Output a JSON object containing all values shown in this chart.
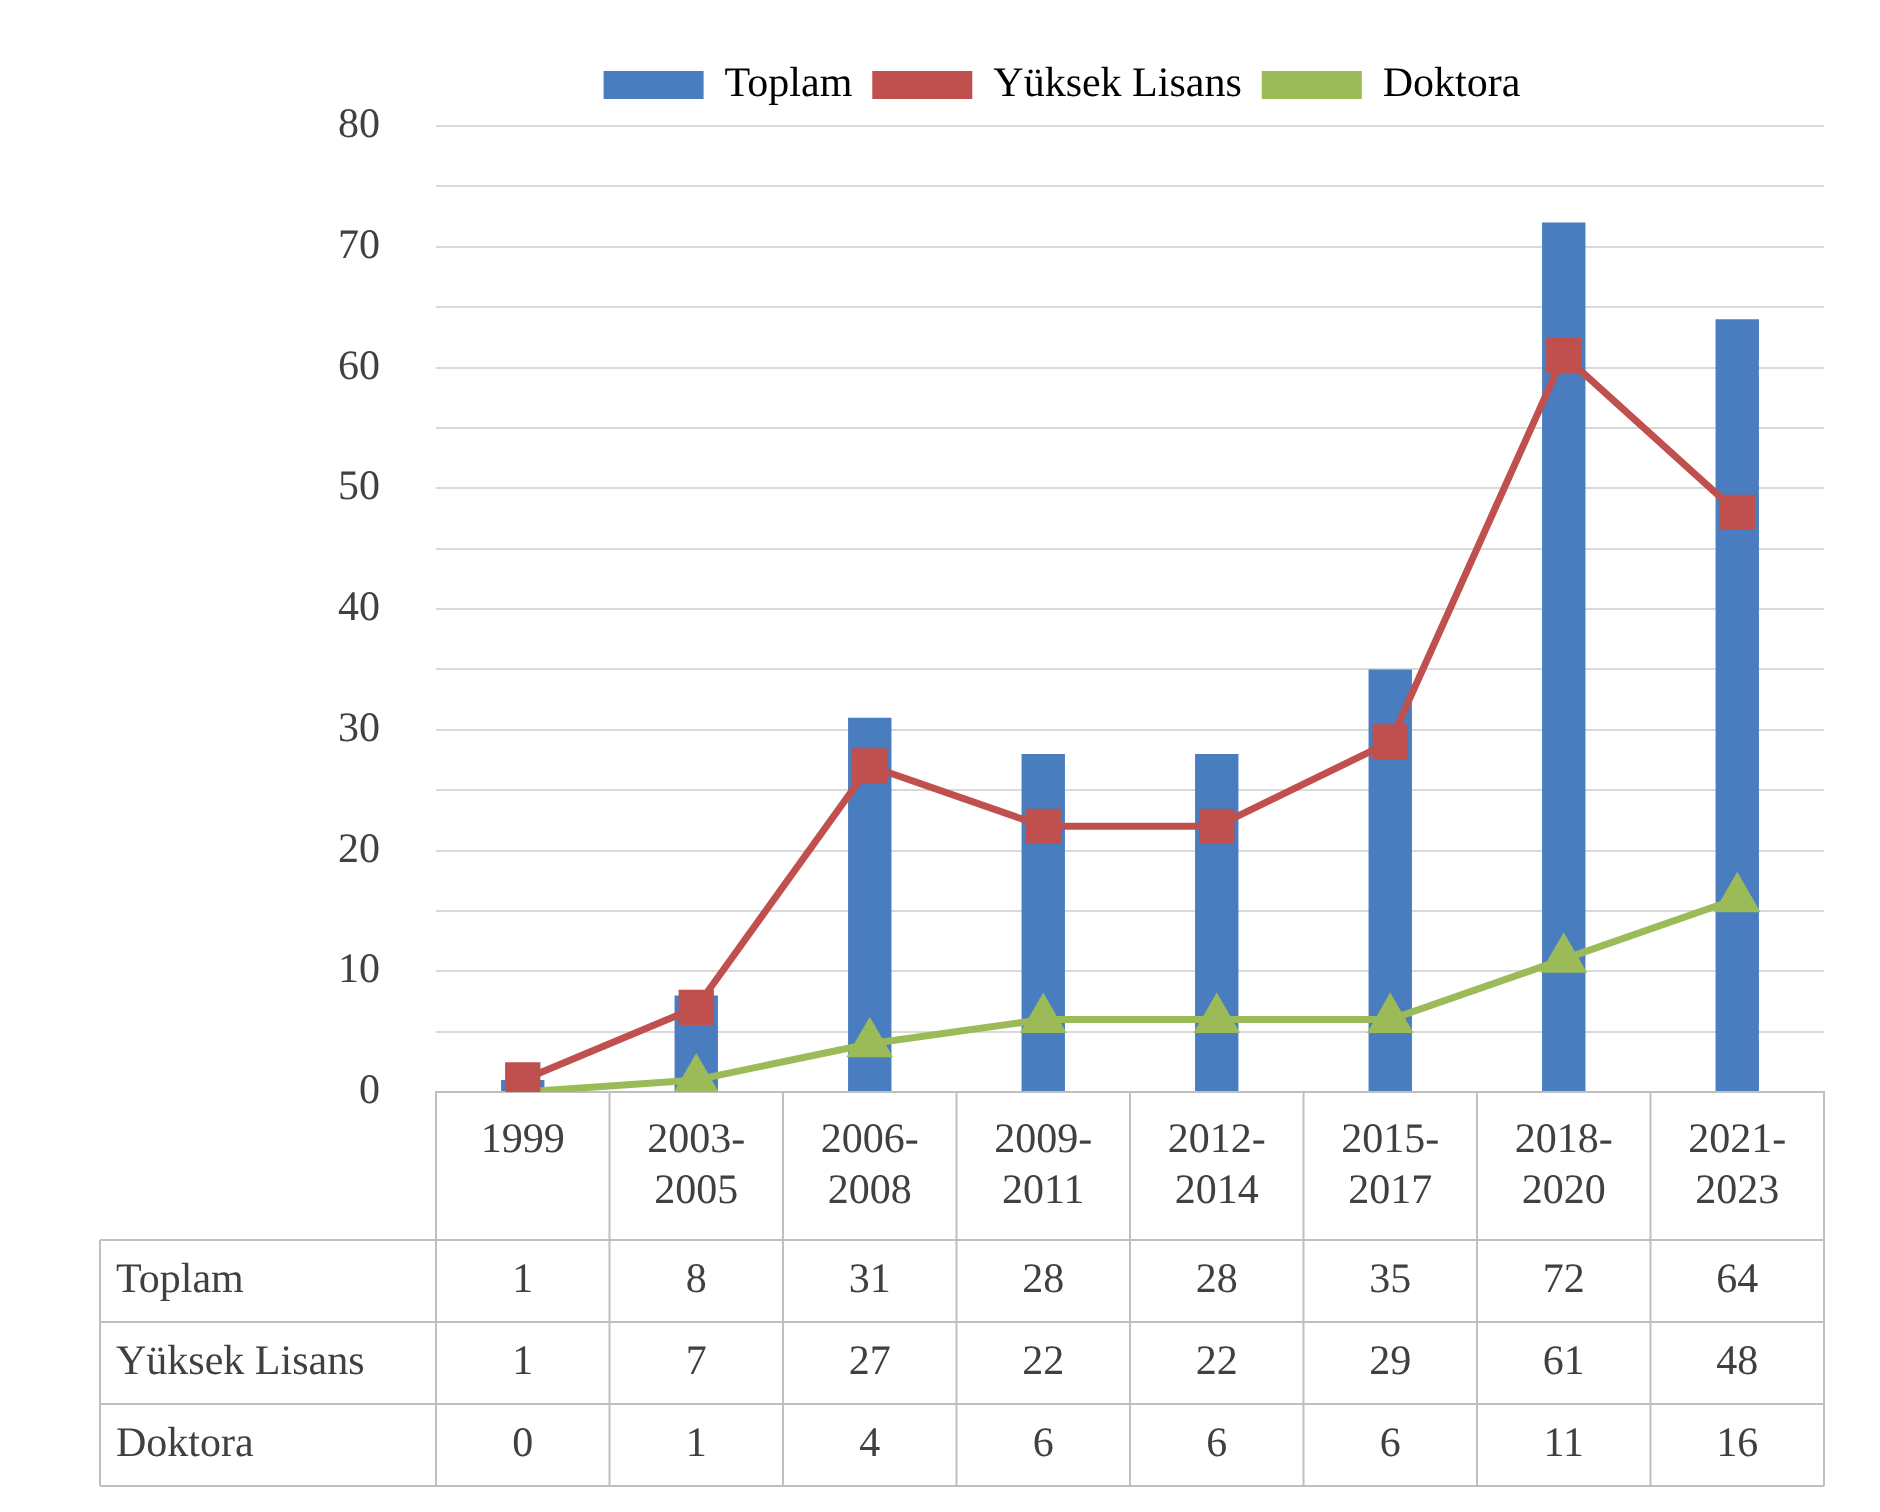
{
  "chart_data": {
    "type": "bar",
    "categories": [
      "1999",
      "2003-2005",
      "2006-2008",
      "2009-2011",
      "2012-2014",
      "2015-2017",
      "2018-2020",
      "2021-2023"
    ],
    "series": [
      {
        "name": "Toplam",
        "type": "bar",
        "color": "#4a7cc0",
        "values": [
          1,
          8,
          31,
          28,
          28,
          35,
          72,
          64
        ]
      },
      {
        "name": "Yüksek Lisans",
        "type": "line",
        "color": "#c0504d",
        "marker": "square",
        "values": [
          1,
          7,
          27,
          22,
          22,
          29,
          61,
          48
        ]
      },
      {
        "name": "Doktora",
        "type": "line",
        "color": "#9bbb59",
        "marker": "triangle",
        "values": [
          0,
          1,
          4,
          6,
          6,
          6,
          11,
          16
        ]
      }
    ],
    "ylim": [
      0,
      80
    ],
    "yticks": [
      0,
      {
        "value": 5,
        "label": null
      },
      10,
      {
        "value": 15,
        "label": null
      },
      20,
      {
        "value": 25,
        "label": null
      },
      30,
      {
        "value": 35,
        "label": null
      },
      40,
      {
        "value": 45,
        "label": null
      },
      50,
      {
        "value": 55,
        "label": null
      },
      60,
      {
        "value": 65,
        "label": null
      },
      70,
      {
        "value": 75,
        "label": null
      },
      80
    ],
    "grid": "y",
    "legend": "top",
    "data_labels": true
  }
}
